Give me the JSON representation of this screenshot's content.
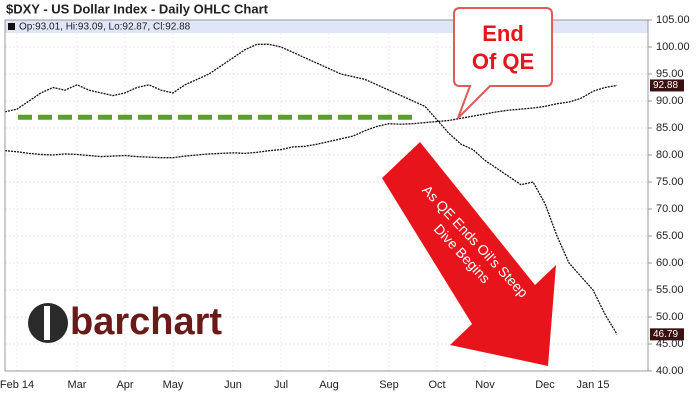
{
  "chart_data": {
    "type": "line",
    "title": "$DXY - US Dollar Index - Daily OHLC Chart",
    "subtitle": "Op:93.01, Hi:93.09, Lo:92.87, Cl:92.88",
    "categories": [
      null,
      "Feb 14",
      null,
      null,
      null,
      null,
      "Mar",
      null,
      null,
      null,
      "Apr",
      null,
      null,
      null,
      "May",
      null,
      null,
      null,
      null,
      "Jun",
      null,
      null,
      null,
      "Jul",
      null,
      null,
      null,
      "Aug",
      null,
      null,
      null,
      null,
      "Sep",
      null,
      null,
      null,
      "Oct",
      null,
      null,
      null,
      "Nov",
      null,
      null,
      null,
      null,
      "Dec",
      null,
      null,
      null,
      "Jan 15",
      null,
      null
    ],
    "series": [
      {
        "name": "Oil",
        "color": "#111111",
        "values": [
          88,
          88.5,
          90,
          91.5,
          92.5,
          92,
          93,
          92,
          91.5,
          91,
          91.5,
          92.5,
          93,
          92,
          91.5,
          93,
          94,
          95,
          96.5,
          98,
          99.5,
          100.5,
          100.5,
          100,
          99,
          98,
          97,
          96,
          95,
          94.5,
          94,
          93,
          92,
          91,
          90,
          89,
          86.5,
          84,
          82,
          81,
          79,
          77.5,
          76,
          74.5,
          75,
          71,
          65,
          60,
          57.5,
          55,
          50.5,
          46.79
        ]
      },
      {
        "name": "DXY",
        "color": "#111111",
        "values": [
          80.8,
          80.6,
          80.3,
          80.1,
          80,
          80.2,
          80.1,
          79.9,
          79.7,
          79.8,
          79.9,
          79.7,
          79.6,
          79.5,
          79.5,
          79.8,
          80,
          80.2,
          80.3,
          80.4,
          80.3,
          80.5,
          80.8,
          81,
          81.5,
          81.6,
          82,
          82.5,
          83,
          83.5,
          84.5,
          85.3,
          85.8,
          85.7,
          85.8,
          86,
          86.2,
          86.4,
          86.8,
          87.2,
          87.6,
          88,
          88.3,
          88.5,
          88.7,
          89,
          89.5,
          89.8,
          90.5,
          91.8,
          92.5,
          92.88
        ]
      }
    ],
    "ylim": [
      40,
      105
    ],
    "yticks": [
      {
        "value": 40,
        "label": "40.00"
      },
      {
        "value": 45,
        "label": "45.00"
      },
      {
        "value": 50,
        "label": "50.00"
      },
      {
        "value": 55,
        "label": "55.00"
      },
      {
        "value": 60,
        "label": "60.00"
      },
      {
        "value": 65,
        "label": "65.00"
      },
      {
        "value": 70,
        "label": "70.00"
      },
      {
        "value": 75,
        "label": "75.00"
      },
      {
        "value": 80,
        "label": "80.00"
      },
      {
        "value": 85,
        "label": "85.00"
      },
      {
        "value": 90,
        "label": "90.00"
      },
      {
        "value": 95,
        "label": "95.00"
      },
      {
        "value": 100,
        "label": "100.00"
      },
      {
        "value": 105,
        "label": "105.00"
      }
    ],
    "grid": true,
    "reference_line": {
      "value": 87,
      "color": "#5a9e2f"
    },
    "annotations": [
      "End",
      "Of QE",
      "As QE Ends Oil's Steep",
      "Dive Begins"
    ],
    "logo": "barchart"
  }
}
